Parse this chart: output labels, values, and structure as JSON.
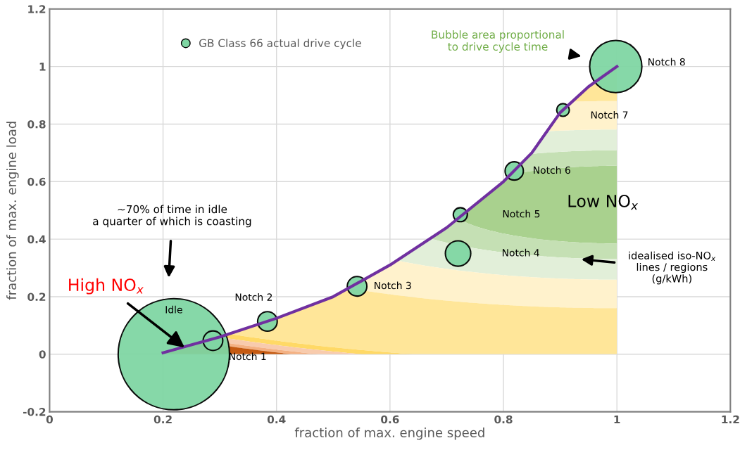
{
  "chart_data": {
    "type": "bubble",
    "xlabel": "fraction of max. engine speed",
    "ylabel": "fraction of max. engine load",
    "xlim": [
      0,
      1.2
    ],
    "xticks": [
      0,
      0.2,
      0.4,
      0.6,
      0.8,
      1,
      1.2
    ],
    "ylim": [
      -0.2,
      1.2
    ],
    "yticks": [
      -0.2,
      0,
      0.2,
      0.4,
      0.6,
      0.8,
      1,
      1.2
    ],
    "grid": true,
    "legend": "top left",
    "series": [
      {
        "type": "line",
        "color": "#7030a0",
        "x": [
          0.2,
          0.3,
          0.4,
          0.5,
          0.6,
          0.7,
          0.8,
          0.85,
          0.9,
          0.95,
          1.0
        ],
        "values": [
          0.005,
          0.06,
          0.125,
          0.2,
          0.31,
          0.44,
          0.6,
          0.7,
          0.84,
          0.93,
          1.0
        ]
      },
      {
        "name": "GB Class 66 actual drive cycle",
        "color": "#7fd6a3",
        "x": [
          0.219,
          0.288,
          0.384,
          0.542,
          0.72,
          0.724,
          0.819,
          0.905,
          0.998
        ],
        "values": [
          0.0,
          0.047,
          0.114,
          0.236,
          0.35,
          0.485,
          0.637,
          0.849,
          1.0
        ],
        "sizes": [
          1,
          0.031,
          0.031,
          0.031,
          0.052,
          0.016,
          0.027,
          0.013,
          0.22
        ]
      }
    ],
    "annotations": [
      "Idle",
      {
        "text": "Notch 1",
        "x": 0.288,
        "y": 0.047
      },
      {
        "text": "Notch 2",
        "x": 0.384,
        "y": 0.114
      },
      {
        "text": "Notch 3",
        "x": 0.542,
        "y": 0.236
      },
      "Notch 4",
      "Notch 5",
      {
        "text": "Notch 6",
        "x": 0.819,
        "y": 0.637
      },
      {
        "text": "Notch 7",
        "x": 0.905,
        "y": 0.849
      },
      "Notch 8",
      "Bubble area proportional\nto drive cycle time",
      "~70% of time in idle\na quarter of which is coasting",
      {
        "text": "High NO$_{x}$",
        "x": 0.238,
        "y": 0.023
      },
      "Low NO$_{x}$",
      "idealised iso-NO$_{x}$\nlines / regions\n(g/kWh)"
    ]
  }
}
